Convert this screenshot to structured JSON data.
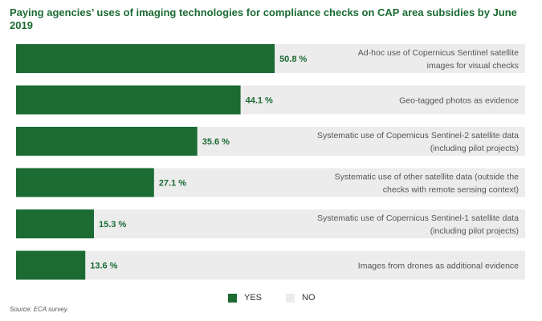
{
  "title": "Paying agencies’ uses of imaging technologies for compliance checks on CAP area subsidies by June 2019",
  "source": "Source: ECA survey.",
  "colors": {
    "yes": "#1b6b33",
    "no": "#ececec",
    "text": "#555555"
  },
  "legend": [
    {
      "label": "YES",
      "color": "#1b6b33"
    },
    {
      "label": "NO",
      "color": "#ececec"
    }
  ],
  "chart_data": {
    "type": "bar",
    "orientation": "horizontal",
    "stacked": true,
    "xlim": [
      0,
      100
    ],
    "categories": [
      [
        "Ad-hoc use of Copernicus Sentinel satellite",
        "images for visual checks"
      ],
      [
        "Geo-tagged photos as evidence"
      ],
      [
        "Systematic use of Copernicus Sentinel-2 satellite data",
        "(including pilot projects)"
      ],
      [
        "Systematic use of other satellite data (outside the",
        "checks with remote sensing context)"
      ],
      [
        "Systematic use of Copernicus Sentinel-1 satellite data",
        "(including pilot projects)"
      ],
      [
        "Images from drones as additional evidence"
      ]
    ],
    "series": [
      {
        "name": "YES",
        "values": [
          50.8,
          44.1,
          35.6,
          27.1,
          15.3,
          13.6
        ]
      },
      {
        "name": "NO",
        "values": [
          49.2,
          55.9,
          64.4,
          72.9,
          84.7,
          86.4
        ]
      }
    ],
    "value_labels": [
      "50.8 %",
      "44.1 %",
      "35.6 %",
      "27.1 %",
      "15.3 %",
      "13.6 %"
    ]
  }
}
